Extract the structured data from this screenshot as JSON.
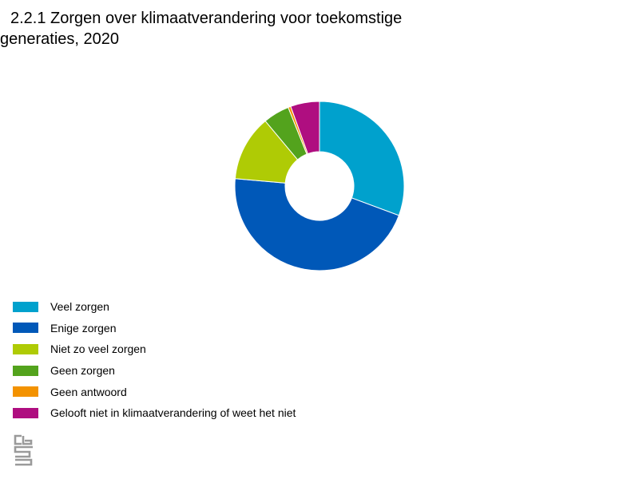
{
  "chart_data": {
    "type": "pie",
    "title": "2.2.1 Zorgen over klimaatverandering voor toekomstige",
    "subtitle": "generaties, 2020",
    "donut": true,
    "legend_position": "bottom-left",
    "series": [
      {
        "name": "Veel zorgen",
        "value": 30.5,
        "color": "#00a1cd"
      },
      {
        "name": "Enige zorgen",
        "value": 45.5,
        "color": "#0058b8"
      },
      {
        "name": "Niet zo veel zorgen",
        "value": 12.5,
        "color": "#afcb05"
      },
      {
        "name": "Geen zorgen",
        "value": 5.0,
        "color": "#53a31d"
      },
      {
        "name": "Geen antwoord",
        "value": 0.5,
        "color": "#f39200"
      },
      {
        "name": "Gelooft niet in klimaatverandering of weet het niet",
        "value": 5.5,
        "color": "#af0e80"
      }
    ]
  },
  "logo": {
    "icon": "cbs-logo-icon",
    "color": "#999999"
  }
}
